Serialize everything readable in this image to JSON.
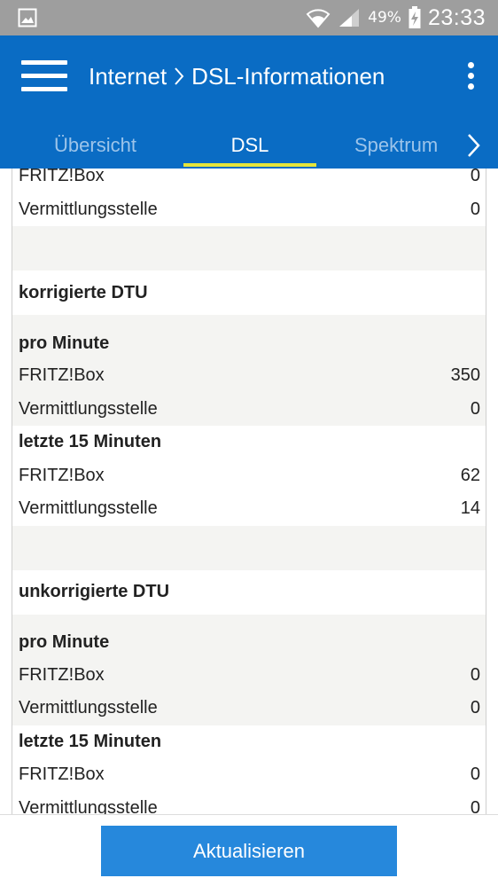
{
  "status_bar": {
    "battery_percent": "49%",
    "time": "23:33",
    "icons": [
      "gallery-icon",
      "wifi-icon",
      "signal-icon",
      "battery-charging-icon"
    ]
  },
  "app_bar": {
    "breadcrumb": [
      "Internet",
      "DSL-Informationen"
    ],
    "color": "#0a6cc4"
  },
  "tabs": [
    {
      "label": "Übersicht",
      "active": false
    },
    {
      "label": "DSL",
      "active": true
    },
    {
      "label": "Spektrum",
      "active": false
    }
  ],
  "rows": [
    {
      "label": "FRITZ!Box",
      "value": "0"
    },
    {
      "label": "Vermittlungsstelle",
      "value": "0"
    },
    {
      "label": "korrigierte DTU"
    },
    {
      "label": "pro Minute"
    },
    {
      "label": "FRITZ!Box",
      "value": "350"
    },
    {
      "label": "Vermittlungsstelle",
      "value": "0"
    },
    {
      "label": "letzte 15 Minuten"
    },
    {
      "label": "FRITZ!Box",
      "value": "62"
    },
    {
      "label": "Vermittlungsstelle",
      "value": "14"
    },
    {
      "label": "unkorrigierte DTU"
    },
    {
      "label": "pro Minute"
    },
    {
      "label": "FRITZ!Box",
      "value": "0"
    },
    {
      "label": "Vermittlungsstelle",
      "value": "0"
    },
    {
      "label": "letzte 15 Minuten"
    },
    {
      "label": "FRITZ!Box",
      "value": "0"
    },
    {
      "label": "Vermittlungsstelle",
      "value": "0"
    }
  ],
  "footer": {
    "refresh_label": "Aktualisieren",
    "button_color": "#2688dc"
  }
}
